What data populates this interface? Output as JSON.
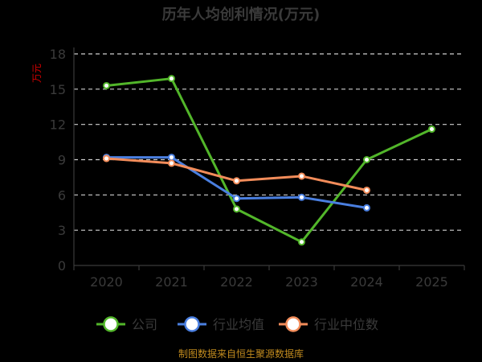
{
  "chart_data": {
    "type": "line",
    "title": "历年人均创利情况(万元)",
    "unit_label": "万元",
    "categories": [
      "2020",
      "2021",
      "2022",
      "2023",
      "2024",
      "2025"
    ],
    "yticks": [
      "0",
      "3",
      "6",
      "9",
      "12",
      "15",
      "18"
    ],
    "ylim": [
      0,
      18
    ],
    "grid": true,
    "legend_position": "bottom",
    "series": [
      {
        "name": "公司",
        "color": "#52b62a",
        "values": [
          15.3,
          15.9,
          4.8,
          2.0,
          9.0,
          11.6
        ]
      },
      {
        "name": "行业均值",
        "color": "#4a7fe0",
        "values": [
          9.2,
          9.2,
          5.7,
          5.8,
          4.9,
          null
        ]
      },
      {
        "name": "行业中位数",
        "color": "#f28c5a",
        "values": [
          9.1,
          8.7,
          7.2,
          7.6,
          6.4,
          null
        ]
      }
    ]
  },
  "footer": "制图数据来自恒生聚源数据库"
}
